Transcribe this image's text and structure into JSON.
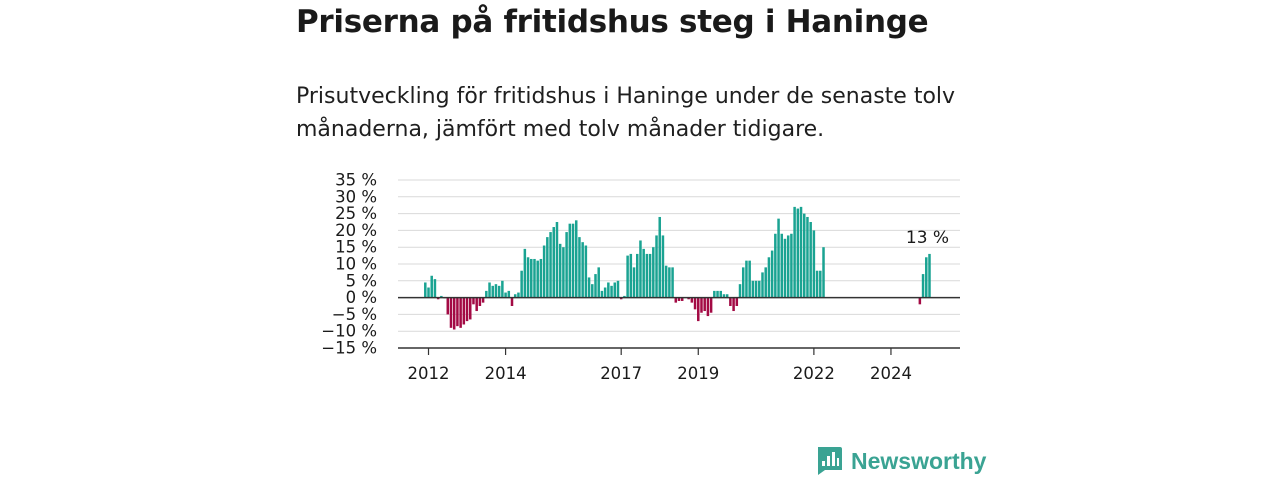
{
  "title": "Priserna på fritidshus steg i Haninge",
  "subtitle": "Prisutveckling för fritidshus i Haninge under de senaste tolv månaderna, jämfört med tolv månader tidigare.",
  "brand": {
    "name": "Newsworthy",
    "icon": "newsworthy-logo-icon",
    "color": "#3aa393"
  },
  "colors": {
    "positive": "#1aa392",
    "negative": "#a30a44",
    "grid": "#d9d9d9",
    "zero": "#333333"
  },
  "chart_data": {
    "type": "bar",
    "title": "",
    "xlabel": "",
    "ylabel": "",
    "ylim": [
      -15,
      35
    ],
    "grid": true,
    "y_ticks": [
      {
        "value": 35,
        "label": "35 %"
      },
      {
        "value": 30,
        "label": "30 %"
      },
      {
        "value": 25,
        "label": "25 %"
      },
      {
        "value": 20,
        "label": "20 %"
      },
      {
        "value": 15,
        "label": "15 %"
      },
      {
        "value": 10,
        "label": "10 %"
      },
      {
        "value": 5,
        "label": "5 %"
      },
      {
        "value": 0,
        "label": "0 %"
      },
      {
        "value": -5,
        "label": "−5 %"
      },
      {
        "value": -10,
        "label": "−10 %"
      },
      {
        "value": -15,
        "label": "−15 %"
      }
    ],
    "x_range": [
      "2011-04",
      "2025-10"
    ],
    "x_ticks": [
      {
        "date": "2012-01",
        "label": "2012"
      },
      {
        "date": "2014-01",
        "label": "2014"
      },
      {
        "date": "2017-01",
        "label": "2017"
      },
      {
        "date": "2019-01",
        "label": "2019"
      },
      {
        "date": "2022-01",
        "label": "2022"
      },
      {
        "date": "2024-01",
        "label": "2024"
      }
    ],
    "annotation": {
      "date": "2025-01",
      "label": "13 %"
    },
    "series": [
      {
        "values": [
          {
            "date": "2011-12",
            "value": 4.5
          },
          {
            "date": "2012-01",
            "value": 3
          },
          {
            "date": "2012-02",
            "value": 6.5
          },
          {
            "date": "2012-03",
            "value": 5.5
          },
          {
            "date": "2012-04",
            "value": -0.5
          },
          {
            "date": "2012-05",
            "value": 0.5
          },
          {
            "date": "2012-06",
            "value": 0
          },
          {
            "date": "2012-07",
            "value": -5
          },
          {
            "date": "2012-08",
            "value": -9
          },
          {
            "date": "2012-09",
            "value": -9.5
          },
          {
            "date": "2012-10",
            "value": -8.5
          },
          {
            "date": "2012-11",
            "value": -9
          },
          {
            "date": "2012-12",
            "value": -8
          },
          {
            "date": "2013-01",
            "value": -7
          },
          {
            "date": "2013-02",
            "value": -6.5
          },
          {
            "date": "2013-03",
            "value": -2
          },
          {
            "date": "2013-04",
            "value": -4
          },
          {
            "date": "2013-05",
            "value": -2.5
          },
          {
            "date": "2013-06",
            "value": -1.5
          },
          {
            "date": "2013-07",
            "value": 2
          },
          {
            "date": "2013-08",
            "value": 4.5
          },
          {
            "date": "2013-09",
            "value": 3.5
          },
          {
            "date": "2013-10",
            "value": 4
          },
          {
            "date": "2013-11",
            "value": 3.5
          },
          {
            "date": "2013-12",
            "value": 5
          },
          {
            "date": "2014-01",
            "value": 1.5
          },
          {
            "date": "2014-02",
            "value": 2
          },
          {
            "date": "2014-03",
            "value": -2.5
          },
          {
            "date": "2014-04",
            "value": 1
          },
          {
            "date": "2014-05",
            "value": 1.5
          },
          {
            "date": "2014-06",
            "value": 8
          },
          {
            "date": "2014-07",
            "value": 14.5
          },
          {
            "date": "2014-08",
            "value": 12
          },
          {
            "date": "2014-09",
            "value": 11.5
          },
          {
            "date": "2014-10",
            "value": 11.5
          },
          {
            "date": "2014-11",
            "value": 11
          },
          {
            "date": "2014-12",
            "value": 11.5
          },
          {
            "date": "2015-01",
            "value": 15.5
          },
          {
            "date": "2015-02",
            "value": 18
          },
          {
            "date": "2015-03",
            "value": 19.5
          },
          {
            "date": "2015-04",
            "value": 21
          },
          {
            "date": "2015-05",
            "value": 22.5
          },
          {
            "date": "2015-06",
            "value": 16
          },
          {
            "date": "2015-07",
            "value": 15
          },
          {
            "date": "2015-08",
            "value": 19.5
          },
          {
            "date": "2015-09",
            "value": 22
          },
          {
            "date": "2015-10",
            "value": 22
          },
          {
            "date": "2015-11",
            "value": 23
          },
          {
            "date": "2015-12",
            "value": 18
          },
          {
            "date": "2016-01",
            "value": 16.5
          },
          {
            "date": "2016-02",
            "value": 15.5
          },
          {
            "date": "2016-03",
            "value": 6
          },
          {
            "date": "2016-04",
            "value": 4
          },
          {
            "date": "2016-05",
            "value": 7
          },
          {
            "date": "2016-06",
            "value": 9
          },
          {
            "date": "2016-07",
            "value": 2
          },
          {
            "date": "2016-08",
            "value": 3
          },
          {
            "date": "2016-09",
            "value": 4.5
          },
          {
            "date": "2016-10",
            "value": 3.5
          },
          {
            "date": "2016-11",
            "value": 4.5
          },
          {
            "date": "2016-12",
            "value": 5
          },
          {
            "date": "2017-01",
            "value": -0.5
          },
          {
            "date": "2017-02",
            "value": 0.5
          },
          {
            "date": "2017-03",
            "value": 12.5
          },
          {
            "date": "2017-04",
            "value": 13
          },
          {
            "date": "2017-05",
            "value": 9
          },
          {
            "date": "2017-06",
            "value": 13
          },
          {
            "date": "2017-07",
            "value": 17
          },
          {
            "date": "2017-08",
            "value": 14.5
          },
          {
            "date": "2017-09",
            "value": 13
          },
          {
            "date": "2017-10",
            "value": 13
          },
          {
            "date": "2017-11",
            "value": 15
          },
          {
            "date": "2017-12",
            "value": 18.5
          },
          {
            "date": "2018-01",
            "value": 24
          },
          {
            "date": "2018-02",
            "value": 18.5
          },
          {
            "date": "2018-03",
            "value": 9.5
          },
          {
            "date": "2018-04",
            "value": 9
          },
          {
            "date": "2018-05",
            "value": 9
          },
          {
            "date": "2018-06",
            "value": -1.5
          },
          {
            "date": "2018-07",
            "value": -1
          },
          {
            "date": "2018-08",
            "value": -1
          },
          {
            "date": "2018-10",
            "value": -0.5
          },
          {
            "date": "2018-11",
            "value": -1.5
          },
          {
            "date": "2018-12",
            "value": -3.5
          },
          {
            "date": "2019-01",
            "value": -7
          },
          {
            "date": "2019-02",
            "value": -4.5
          },
          {
            "date": "2019-03",
            "value": -4
          },
          {
            "date": "2019-04",
            "value": -5.5
          },
          {
            "date": "2019-05",
            "value": -4.5
          },
          {
            "date": "2019-06",
            "value": 2
          },
          {
            "date": "2019-07",
            "value": 2
          },
          {
            "date": "2019-08",
            "value": 2
          },
          {
            "date": "2019-09",
            "value": 1
          },
          {
            "date": "2019-10",
            "value": 1
          },
          {
            "date": "2019-11",
            "value": -2.5
          },
          {
            "date": "2019-12",
            "value": -4
          },
          {
            "date": "2020-01",
            "value": -2.5
          },
          {
            "date": "2020-02",
            "value": 4
          },
          {
            "date": "2020-03",
            "value": 9
          },
          {
            "date": "2020-04",
            "value": 11
          },
          {
            "date": "2020-05",
            "value": 11
          },
          {
            "date": "2020-06",
            "value": 5
          },
          {
            "date": "2020-07",
            "value": 5
          },
          {
            "date": "2020-08",
            "value": 5
          },
          {
            "date": "2020-09",
            "value": 7.5
          },
          {
            "date": "2020-10",
            "value": 9
          },
          {
            "date": "2020-11",
            "value": 12
          },
          {
            "date": "2020-12",
            "value": 14
          },
          {
            "date": "2021-01",
            "value": 19
          },
          {
            "date": "2021-02",
            "value": 23.5
          },
          {
            "date": "2021-03",
            "value": 19
          },
          {
            "date": "2021-04",
            "value": 17.5
          },
          {
            "date": "2021-05",
            "value": 18.5
          },
          {
            "date": "2021-06",
            "value": 19
          },
          {
            "date": "2021-07",
            "value": 27
          },
          {
            "date": "2021-08",
            "value": 26.5
          },
          {
            "date": "2021-09",
            "value": 27
          },
          {
            "date": "2021-10",
            "value": 25
          },
          {
            "date": "2021-11",
            "value": 24
          },
          {
            "date": "2021-12",
            "value": 22.5
          },
          {
            "date": "2022-01",
            "value": 20
          },
          {
            "date": "2022-02",
            "value": 8
          },
          {
            "date": "2022-03",
            "value": 8
          },
          {
            "date": "2022-04",
            "value": 15
          },
          {
            "date": "2024-10",
            "value": -2
          },
          {
            "date": "2024-11",
            "value": 7
          },
          {
            "date": "2024-12",
            "value": 12
          },
          {
            "date": "2025-01",
            "value": 13
          }
        ]
      }
    ]
  }
}
